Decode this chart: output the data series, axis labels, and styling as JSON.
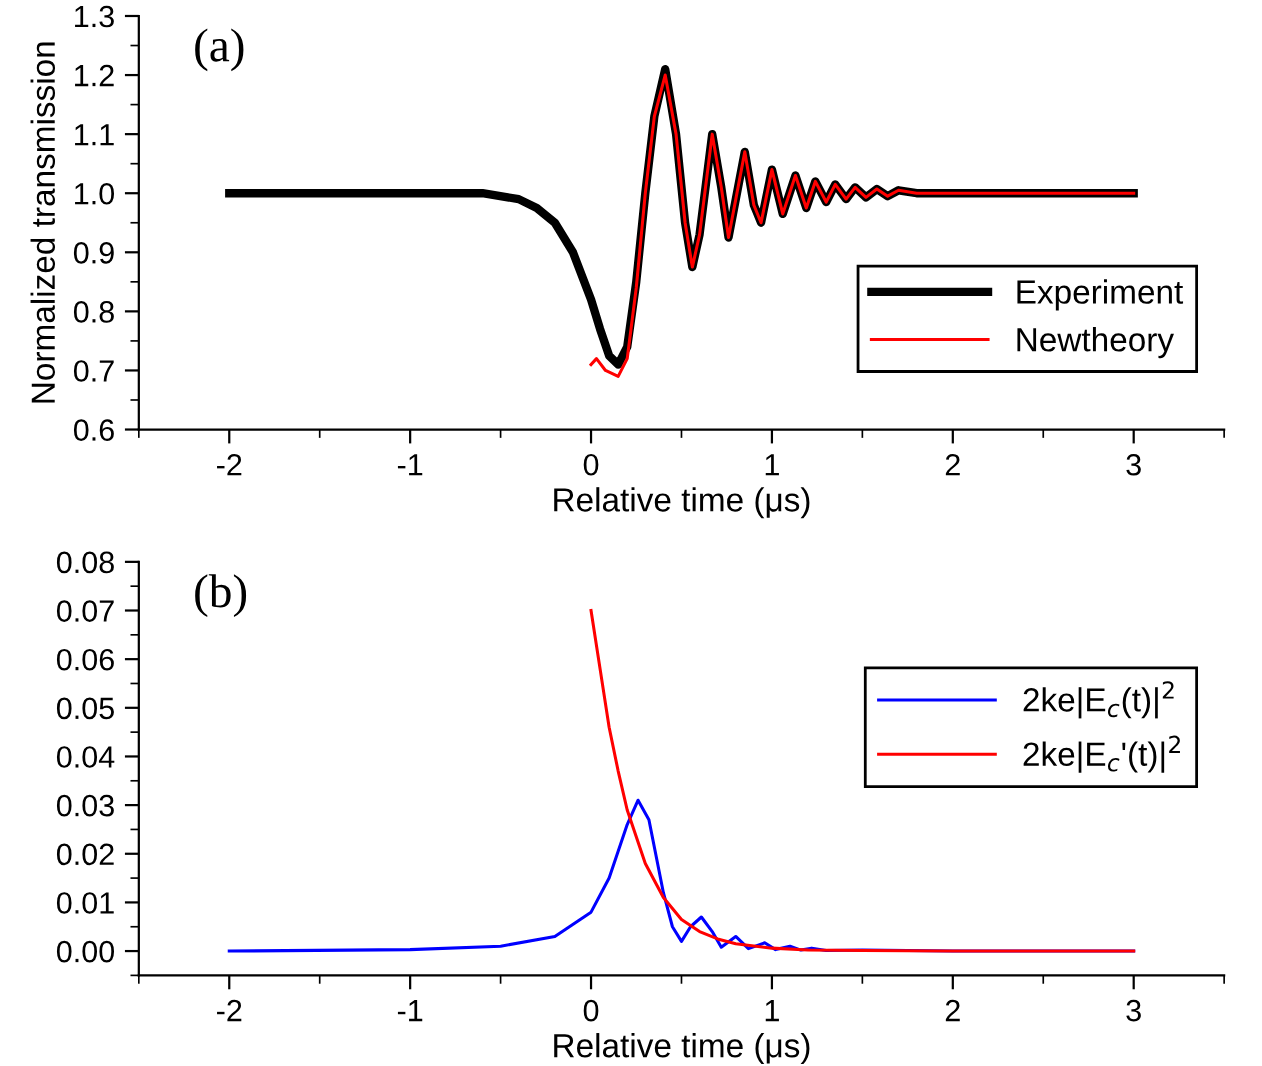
{
  "chart_data": [
    {
      "type": "line",
      "xlabel": "Relative time (μs)",
      "ylabel": "Normalized transmission",
      "annotations": [
        "(a)"
      ],
      "xlim": [
        -2.5,
        3.5
      ],
      "xticks": [
        -2,
        -1,
        0,
        1,
        2,
        3
      ],
      "ylim": [
        0.6,
        1.3
      ],
      "yticks": [
        {
          "value": 0.6,
          "label": "0.6"
        },
        {
          "value": 0.7,
          "label": "0.7"
        },
        {
          "value": 0.8,
          "label": "0.8"
        },
        {
          "value": 0.9,
          "label": "0.9"
        },
        {
          "value": 1.0,
          "label": "1.0"
        },
        {
          "value": 1.1,
          "label": "1.1"
        },
        {
          "value": 1.2,
          "label": "1.2"
        },
        {
          "value": 1.3,
          "label": "1.3"
        }
      ],
      "grid": false,
      "legend": "bottom right",
      "series": [
        {
          "name": "Experiment",
          "color": "#000000",
          "x": [
            -2,
            -1.5,
            -1,
            -0.6,
            -0.4,
            -0.3,
            -0.2,
            -0.1,
            0,
            0.05,
            0.1,
            0.15,
            0.2,
            0.25,
            0.3,
            0.35,
            0.41,
            0.47,
            0.52,
            0.56,
            0.6,
            0.67,
            0.72,
            0.76,
            0.85,
            0.9,
            0.94,
            1.0,
            1.06,
            1.13,
            1.19,
            1.24,
            1.3,
            1.35,
            1.41,
            1.46,
            1.52,
            1.58,
            1.64,
            1.7,
            1.8,
            2.0,
            2.5,
            3.0
          ],
          "values": [
            1.0,
            1.0,
            1.0,
            1.0,
            0.99,
            0.975,
            0.95,
            0.9,
            0.82,
            0.77,
            0.725,
            0.71,
            0.74,
            0.85,
            1.0,
            1.13,
            1.21,
            1.1,
            0.95,
            0.875,
            0.93,
            1.1,
            1.01,
            0.925,
            1.07,
            0.98,
            0.95,
            1.04,
            0.965,
            1.03,
            0.975,
            1.02,
            0.985,
            1.015,
            0.99,
            1.01,
            0.993,
            1.007,
            0.995,
            1.005,
            1.0,
            1.0,
            1.0,
            1.0
          ]
        },
        {
          "name": "Newtheory",
          "color": "#ff0000",
          "x": [
            0,
            0.03,
            0.08,
            0.15,
            0.2,
            0.25,
            0.3,
            0.35,
            0.41,
            0.47,
            0.52,
            0.56,
            0.6,
            0.67,
            0.72,
            0.76,
            0.85,
            0.9,
            0.94,
            1.0,
            1.06,
            1.13,
            1.19,
            1.24,
            1.3,
            1.35,
            1.41,
            1.46,
            1.52,
            1.58,
            1.64,
            1.7,
            1.8,
            2.0,
            2.5,
            3.0
          ],
          "values": [
            0.71,
            0.72,
            0.7,
            0.69,
            0.72,
            0.84,
            1.0,
            1.13,
            1.2,
            1.1,
            0.95,
            0.875,
            0.93,
            1.1,
            1.01,
            0.925,
            1.07,
            0.98,
            0.95,
            1.04,
            0.965,
            1.03,
            0.975,
            1.02,
            0.985,
            1.015,
            0.99,
            1.01,
            0.993,
            1.007,
            0.995,
            1.005,
            1.0,
            1.0,
            1.0,
            1.0
          ]
        }
      ]
    },
    {
      "type": "line",
      "xlabel": "Relative time (μs)",
      "annotations": [
        "(b)"
      ],
      "xlim": [
        -2.5,
        3.5
      ],
      "xticks": [
        -2,
        -1,
        0,
        1,
        2,
        3
      ],
      "ylim": [
        -0.005,
        0.08
      ],
      "yticks": [
        {
          "value": 0,
          "label": "0.00"
        },
        {
          "value": 0.01,
          "label": "0.01"
        },
        {
          "value": 0.02,
          "label": "0.02"
        },
        {
          "value": 0.03,
          "label": "0.03"
        },
        {
          "value": 0.04,
          "label": "0.04"
        },
        {
          "value": 0.05,
          "label": "0.05"
        },
        {
          "value": 0.06,
          "label": "0.06"
        },
        {
          "value": 0.07,
          "label": "0.07"
        },
        {
          "value": 0.08,
          "label": "0.08"
        }
      ],
      "grid": false,
      "legend": "right",
      "series": [
        {
          "name": "2ke|E$_{c}$(t)|$^{2}$",
          "color": "#0000ff",
          "x": [
            -2,
            -1,
            -0.5,
            -0.2,
            0,
            0.1,
            0.2,
            0.26,
            0.32,
            0.4,
            0.45,
            0.5,
            0.55,
            0.61,
            0.67,
            0.72,
            0.8,
            0.87,
            0.96,
            1.02,
            1.1,
            1.16,
            1.22,
            1.3,
            1.5,
            2,
            3
          ],
          "values": [
            0,
            0.0003,
            0.001,
            0.003,
            0.008,
            0.015,
            0.026,
            0.031,
            0.027,
            0.012,
            0.005,
            0.002,
            0.005,
            0.007,
            0.004,
            0.0008,
            0.003,
            0.0005,
            0.0017,
            0.0003,
            0.001,
            0.0002,
            0.0006,
            0.0001,
            0.0002,
            0,
            0
          ]
        },
        {
          "name": "2ke|E$_{c}$'(t)|$^{2}$",
          "color": "#ff0000",
          "x": [
            0,
            0.05,
            0.1,
            0.15,
            0.2,
            0.3,
            0.4,
            0.5,
            0.6,
            0.7,
            0.8,
            1.0,
            1.2,
            1.5,
            2,
            3
          ],
          "values": [
            0.07,
            0.058,
            0.046,
            0.037,
            0.029,
            0.018,
            0.011,
            0.0065,
            0.004,
            0.0025,
            0.0015,
            0.0006,
            0.0002,
            0.0001,
            0,
            0
          ]
        }
      ]
    }
  ]
}
